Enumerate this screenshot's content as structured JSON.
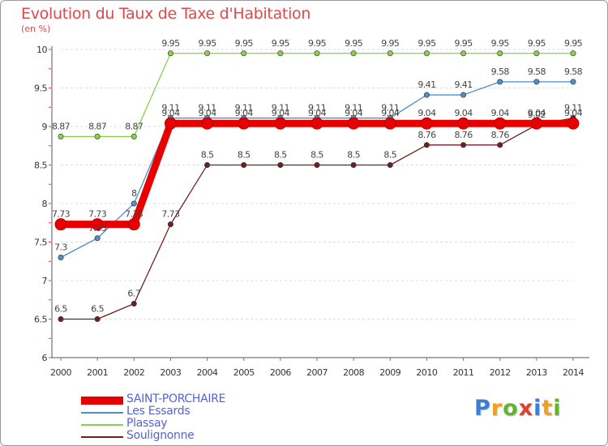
{
  "chart_data": {
    "type": "line",
    "title": "Evolution du Taux de Taxe d'Habitation",
    "unit_label": "(en %)",
    "x": [
      "2000",
      "2001",
      "2002",
      "2003",
      "2004",
      "2005",
      "2006",
      "2007",
      "2008",
      "2009",
      "2010",
      "2011",
      "2012",
      "2013",
      "2014"
    ],
    "ylim": [
      6,
      10
    ],
    "yticks": [
      6,
      6.5,
      7,
      7.5,
      8,
      8.5,
      9,
      9.5,
      10
    ],
    "grid": true,
    "legend_position": "bottom-left",
    "series": [
      {
        "name": "SAINT-PORCHAIRE",
        "color": "#e60000",
        "values": [
          7.73,
          7.73,
          7.73,
          9.04,
          9.04,
          9.04,
          9.04,
          9.04,
          9.04,
          9.04,
          9.04,
          9.04,
          9.04,
          9.04,
          9.04
        ]
      },
      {
        "name": "Les Essards",
        "color": "#4f8ec9",
        "values": [
          7.3,
          7.55,
          8,
          9.11,
          9.11,
          9.11,
          9.11,
          9.11,
          9.11,
          9.11,
          9.41,
          9.41,
          9.58,
          9.58,
          9.58
        ]
      },
      {
        "name": "Plassay",
        "color": "#8ccf4d",
        "values": [
          8.87,
          8.87,
          8.87,
          9.95,
          9.95,
          9.95,
          9.95,
          9.95,
          9.95,
          9.95,
          9.95,
          9.95,
          9.95,
          9.95,
          9.95
        ]
      },
      {
        "name": "Soulignonne",
        "color": "#6e2020",
        "values": [
          6.5,
          6.5,
          6.7,
          7.73,
          8.5,
          8.5,
          8.5,
          8.5,
          8.5,
          8.5,
          8.76,
          8.76,
          8.76,
          9.02,
          9.11
        ]
      }
    ]
  },
  "brand": {
    "text": "Proxiti",
    "letters": [
      {
        "ch": "P",
        "color": "#3a7fd5"
      },
      {
        "ch": "r",
        "color": "#f2a11f"
      },
      {
        "ch": "o",
        "color": "#61b531"
      },
      {
        "ch": "x",
        "color": "#e2402b"
      },
      {
        "ch": "i",
        "color": "#3a7fd5"
      },
      {
        "ch": "t",
        "color": "#f2a11f"
      },
      {
        "ch": "i",
        "color": "#61b531"
      }
    ]
  }
}
